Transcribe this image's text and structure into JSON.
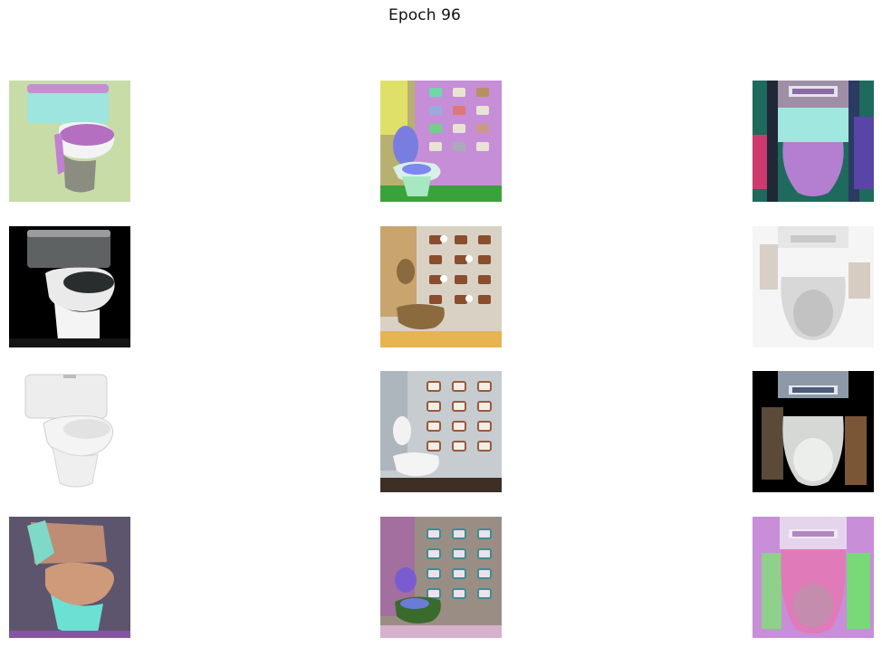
{
  "figure": {
    "title": "Epoch 96"
  },
  "grid": {
    "rows": [
      [
        "toilet-render",
        "toilet-paper-wall-scene",
        "johnson-toilet-front"
      ],
      [
        "toilet-render",
        "toilet-paper-wall-scene",
        "johnson-toilet-front"
      ],
      [
        "toilet-render",
        "toilet-paper-wall-scene",
        "johnson-toilet-front"
      ],
      [
        "toilet-render",
        "toilet-paper-wall-scene",
        "johnson-toilet-front"
      ]
    ]
  },
  "colors": {
    "background": "#ffffff",
    "title_text": "#111111"
  }
}
